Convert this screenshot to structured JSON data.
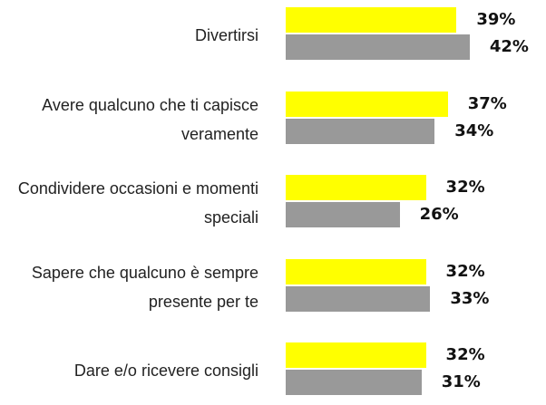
{
  "chart_data": {
    "type": "bar",
    "orientation": "horizontal",
    "categories": [
      "Divertirsi",
      "Avere qualcuno che ti capisce veramente",
      "Condividere occasioni e momenti speciali",
      "Sapere che qualcuno è sempre presente per te",
      "Dare e/o ricevere consigli"
    ],
    "series": [
      {
        "color": "#ffff00",
        "values": [
          39,
          37,
          32,
          32,
          32
        ],
        "value_labels": [
          "39%",
          "37%",
          "32%",
          "32%",
          "32%"
        ]
      },
      {
        "color": "#999999",
        "values": [
          42,
          34,
          26,
          33,
          31
        ],
        "value_labels": [
          "42%",
          "34%",
          "26%",
          "33%",
          "31%"
        ]
      }
    ]
  }
}
